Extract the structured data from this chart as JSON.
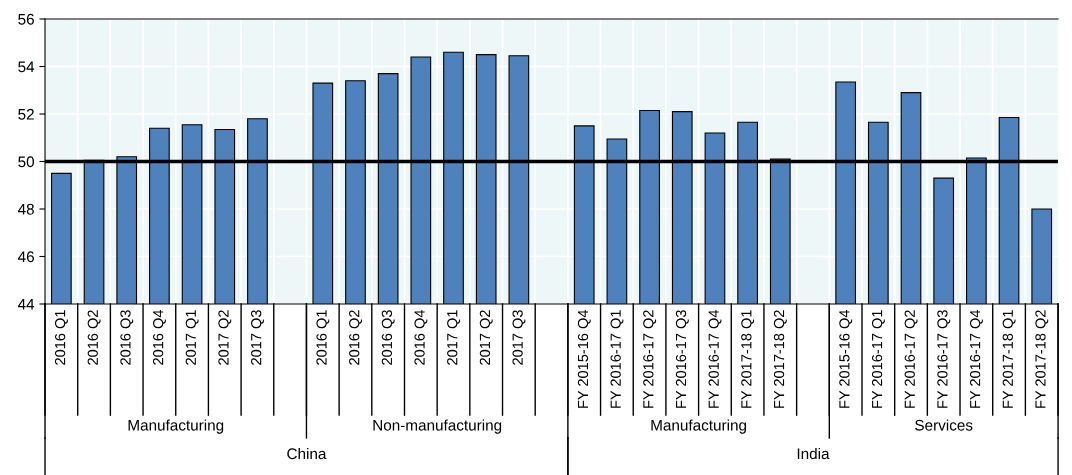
{
  "chart_data": {
    "type": "bar",
    "categories": [
      "2016 Q1",
      "2016 Q2",
      "2016 Q3",
      "2016 Q4",
      "2017 Q1",
      "2017 Q2",
      "2017 Q3",
      null,
      "2016 Q1",
      "2016 Q2",
      "2016 Q3",
      "2016 Q4",
      "2017 Q1",
      "2017 Q2",
      "2017 Q3",
      null,
      "FY 2015-16 Q4",
      "FY 2016-17 Q1",
      "FY 2016-17 Q2",
      "FY 2016-17 Q3",
      "FY 2016-17 Q4",
      "FY 2017-18 Q1",
      "FY 2017-18 Q2",
      null,
      "FY 2015-16 Q4",
      "FY 2016-17 Q1",
      "FY 2016-17 Q2",
      "FY 2016-17 Q3",
      "FY 2016-17 Q4",
      "FY 2017-18 Q1",
      "FY 2017-18 Q2"
    ],
    "values": [
      49.5,
      50.05,
      50.2,
      51.4,
      51.55,
      51.35,
      51.8,
      null,
      53.3,
      53.4,
      53.7,
      54.4,
      54.6,
      54.5,
      54.45,
      null,
      51.5,
      50.95,
      52.15,
      52.1,
      51.2,
      51.65,
      50.1,
      null,
      53.35,
      51.65,
      52.9,
      49.3,
      50.15,
      51.85,
      48.0
    ],
    "color": "#4f81bd",
    "ylim": [
      44,
      56
    ],
    "yticks": [
      44,
      46,
      48,
      50,
      52,
      54,
      56
    ],
    "grid": true,
    "ref_lines": [
      {
        "axis": "y",
        "value": 50,
        "color": "#000000"
      }
    ],
    "annotations": [
      "Manufacturing",
      "Non-manufacturing",
      "Manufacturing",
      "Services",
      "China",
      "India"
    ]
  }
}
